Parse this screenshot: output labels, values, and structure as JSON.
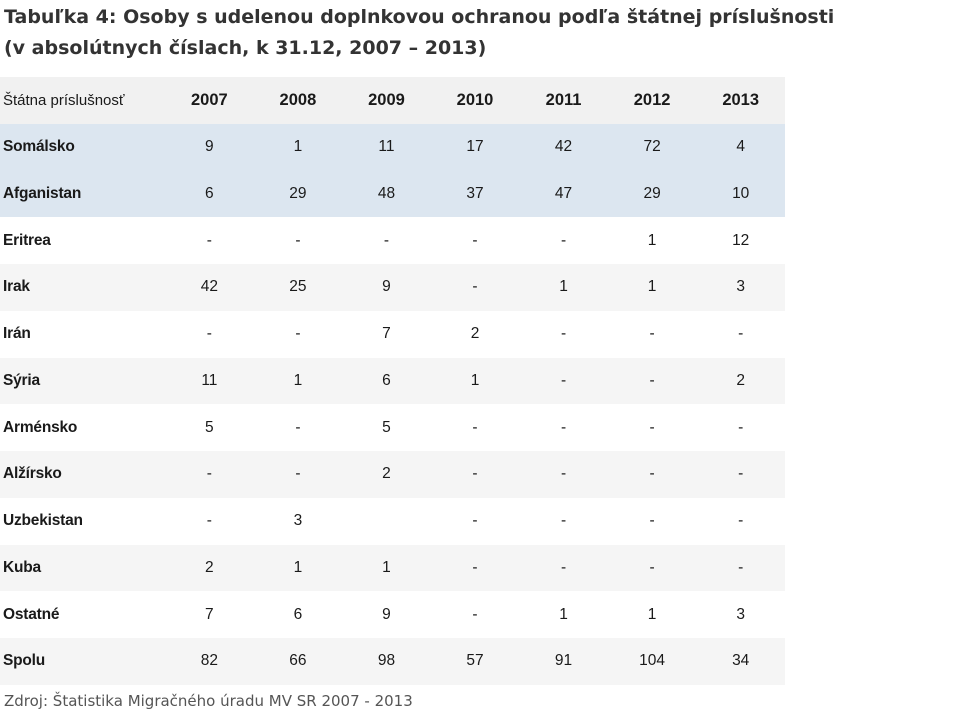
{
  "title": {
    "line1": "Tabuľka 4: Osoby s udelenou doplnkovou ochranou podľa štátnej príslušnosti",
    "line2": "(v absolútnych číslach, k 31.12, 2007 – 2013)"
  },
  "table": {
    "header_country": "Štátna príslušnosť",
    "years": [
      "2007",
      "2008",
      "2009",
      "2010",
      "2011",
      "2012",
      "2013"
    ],
    "rows": [
      {
        "country": "Somálsko",
        "values": [
          "9",
          "1",
          "11",
          "17",
          "42",
          "72",
          "4"
        ]
      },
      {
        "country": "Afganistan",
        "values": [
          "6",
          "29",
          "48",
          "37",
          "47",
          "29",
          "10"
        ]
      },
      {
        "country": "Eritrea",
        "values": [
          "-",
          "-",
          "-",
          "-",
          "-",
          "1",
          "12"
        ]
      },
      {
        "country": "Irak",
        "values": [
          "42",
          "25",
          "9",
          "-",
          "1",
          "1",
          "3"
        ]
      },
      {
        "country": "Irán",
        "values": [
          "-",
          "-",
          "7",
          "2",
          "-",
          "-",
          "-"
        ]
      },
      {
        "country": "Sýria",
        "values": [
          "11",
          "1",
          "6",
          "1",
          "-",
          "-",
          "2"
        ]
      },
      {
        "country": "Arménsko",
        "values": [
          "5",
          "-",
          "5",
          "-",
          "-",
          "-",
          "-"
        ]
      },
      {
        "country": "Alžírsko",
        "values": [
          "-",
          "-",
          "2",
          "-",
          "-",
          "-",
          "-"
        ]
      },
      {
        "country": "Uzbekistan",
        "values": [
          "-",
          "3",
          "",
          "-",
          "-",
          "-",
          "-"
        ]
      },
      {
        "country": "Kuba",
        "values": [
          "2",
          "1",
          "1",
          "-",
          "-",
          "-",
          "-"
        ]
      },
      {
        "country": "Ostatné",
        "values": [
          "7",
          "6",
          "9",
          "-",
          "1",
          "1",
          "3"
        ]
      },
      {
        "country": "Spolu",
        "values": [
          "82",
          "66",
          "98",
          "57",
          "91",
          "104",
          "34"
        ]
      }
    ]
  },
  "colors": {
    "header_bg": "#f1f1f1",
    "highlight_bg": "#dce6f0",
    "alt_bg": "#f5f5f5"
  },
  "source": "Zdroj: Štatistika Migračného úradu MV SR 2007 - 2013"
}
